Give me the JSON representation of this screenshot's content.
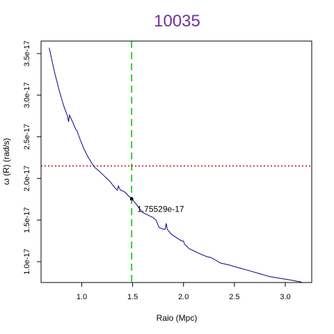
{
  "chart_data": {
    "type": "line",
    "title": "10035",
    "title_color": "#7030a0",
    "xlabel": "Raio (Mpc)",
    "ylabel": "ω (R) (rad/s)",
    "xlim": [
      0.6,
      3.26
    ],
    "ylim": [
      7.5e-18,
      3.65e-17
    ],
    "x_ticks": [
      1.0,
      1.5,
      2.0,
      2.5,
      3.0
    ],
    "x_tick_labels": [
      "1.0",
      "1.5",
      "2.0",
      "2.5",
      "3.0"
    ],
    "y_ticks": [
      1e-17,
      1.5e-17,
      2e-17,
      2.5e-17,
      3e-17,
      3.5e-17
    ],
    "y_tick_labels": [
      "1.0e-17",
      "1.5e-17",
      "2.0e-17",
      "2.5e-17",
      "3.0e-17",
      "3.5e-17"
    ],
    "grid": false,
    "series": [
      {
        "color": "#000080",
        "points": [
          [
            0.68,
            3.57e-17
          ],
          [
            0.73,
            3.29e-17
          ],
          [
            0.78,
            3.05e-17
          ],
          [
            0.82,
            2.88e-17
          ],
          [
            0.86,
            2.75e-17
          ],
          [
            0.87,
            2.68e-17
          ],
          [
            0.88,
            2.76e-17
          ],
          [
            0.91,
            2.68e-17
          ],
          [
            0.94,
            2.59e-17
          ],
          [
            0.95,
            2.58e-17
          ],
          [
            0.98,
            2.48e-17
          ],
          [
            1.02,
            2.36e-17
          ],
          [
            1.06,
            2.26e-17
          ],
          [
            1.1,
            2.18e-17
          ],
          [
            1.13,
            2.13e-17
          ],
          [
            1.17,
            2.09e-17
          ],
          [
            1.22,
            2.03e-17
          ],
          [
            1.28,
            1.96e-17
          ],
          [
            1.33,
            1.88e-17
          ],
          [
            1.35,
            1.86e-17
          ],
          [
            1.36,
            1.91e-17
          ],
          [
            1.38,
            1.86e-17
          ],
          [
            1.42,
            1.84e-17
          ],
          [
            1.46,
            1.79e-17
          ],
          [
            1.49,
            1.755e-17
          ],
          [
            1.53,
            1.7e-17
          ],
          [
            1.57,
            1.63e-17
          ],
          [
            1.6,
            1.59e-17
          ],
          [
            1.65,
            1.56e-17
          ],
          [
            1.7,
            1.53e-17
          ],
          [
            1.73,
            1.5e-17
          ],
          [
            1.76,
            1.41e-17
          ],
          [
            1.8,
            1.39e-17
          ],
          [
            1.82,
            1.39e-17
          ],
          [
            1.83,
            1.46e-17
          ],
          [
            1.84,
            1.39e-17
          ],
          [
            1.88,
            1.33e-17
          ],
          [
            1.93,
            1.29e-17
          ],
          [
            1.98,
            1.25e-17
          ],
          [
            2.0,
            1.25e-17
          ],
          [
            2.01,
            1.21e-17
          ],
          [
            2.03,
            1.19e-17
          ],
          [
            2.05,
            1.16e-17
          ],
          [
            2.1,
            1.13e-17
          ],
          [
            2.17,
            1.09e-17
          ],
          [
            2.23,
            1.06e-17
          ],
          [
            2.27,
            1.05e-17
          ],
          [
            2.3,
            1.03e-17
          ],
          [
            2.36,
            9.85e-18
          ],
          [
            2.45,
            9.6e-18
          ],
          [
            2.55,
            9.25e-18
          ],
          [
            2.65,
            8.9e-18
          ],
          [
            2.75,
            8.55e-18
          ],
          [
            2.85,
            8.2e-18
          ],
          [
            2.95,
            8e-18
          ],
          [
            3.05,
            7.8e-18
          ],
          [
            3.16,
            7.55e-18
          ]
        ]
      }
    ],
    "vline": {
      "x": 1.49,
      "color": "#33cc33",
      "style": "dashed"
    },
    "hline": {
      "y": 2.15e-17,
      "color": "#cc0000",
      "style": "dotted"
    },
    "marked_point": {
      "x": 1.49,
      "y": 1.75529e-17,
      "label": "1.75529e-17"
    }
  }
}
